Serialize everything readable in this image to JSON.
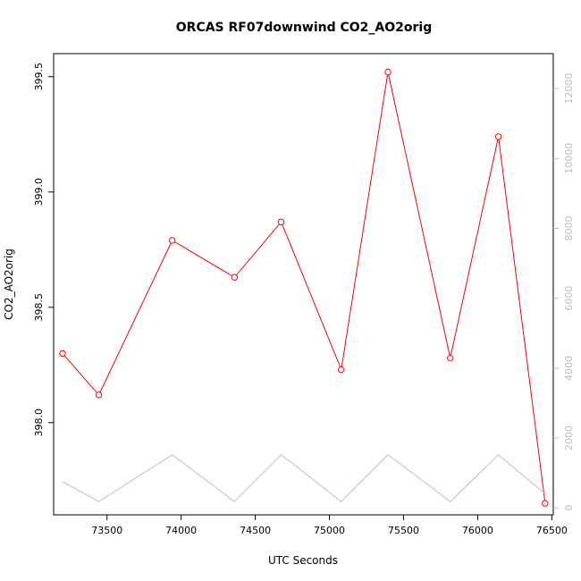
{
  "chart_data": {
    "type": "line",
    "title": "ORCAS RF07downwind CO2_AO2orig",
    "xlabel": "UTC Seconds",
    "ylabel": "CO2_AO2orig",
    "xlim": [
      73140,
      76510
    ],
    "ylim": [
      397.6,
      399.6
    ],
    "y2lim": [
      -200,
      13000
    ],
    "x_ticks": [
      73500,
      74000,
      74500,
      75000,
      75500,
      76000,
      76500
    ],
    "y_ticks": [
      398.0,
      398.5,
      399.0,
      399.5
    ],
    "y2_ticks": [
      0,
      2000,
      4000,
      6000,
      8000,
      10000,
      12000
    ],
    "series": [
      {
        "name": "",
        "color": "#ff0000",
        "marker": "open-circle",
        "axis": "left",
        "x": [
          73200,
          73445,
          73940,
          74360,
          74675,
          75080,
          75395,
          75815,
          76140,
          76455
        ],
        "y": [
          398.3,
          398.12,
          398.79,
          398.63,
          398.87,
          398.23,
          399.52,
          398.28,
          399.24,
          397.65
        ]
      },
      {
        "name": "",
        "color": "#bebebe",
        "marker": "none",
        "axis": "right",
        "x": [
          73200,
          73445,
          73940,
          74360,
          74675,
          75080,
          75395,
          75815,
          76140,
          76455
        ],
        "y": [
          750,
          180,
          1520,
          180,
          1520,
          180,
          1520,
          180,
          1520,
          400
        ]
      }
    ]
  }
}
